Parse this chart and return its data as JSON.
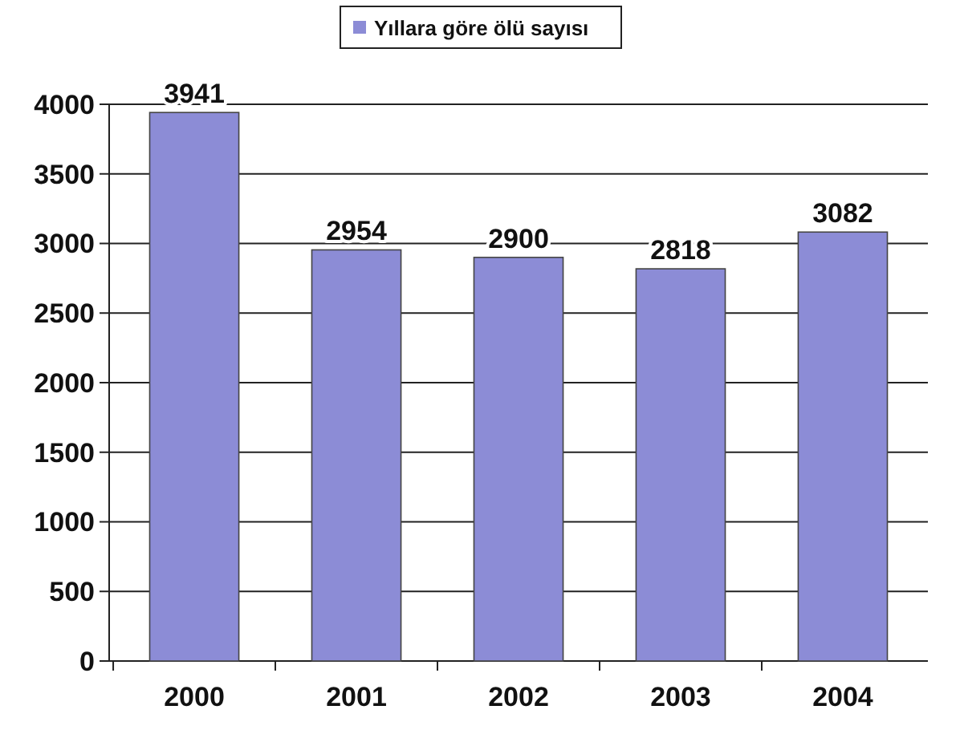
{
  "chart_data": {
    "type": "bar",
    "categories": [
      "2000",
      "2001",
      "2002",
      "2003",
      "2004"
    ],
    "series": [
      {
        "name": "Yıllara göre ölü sayısı",
        "color": "#8c8cd6",
        "values": [
          3941,
          2954,
          2900,
          2818,
          3082
        ]
      }
    ],
    "ylim": [
      0,
      4000
    ],
    "yticks": [
      0,
      500,
      1000,
      1500,
      2000,
      2500,
      3000,
      3500,
      4000
    ],
    "grid": "y",
    "legend": "top",
    "data_labels": true
  }
}
